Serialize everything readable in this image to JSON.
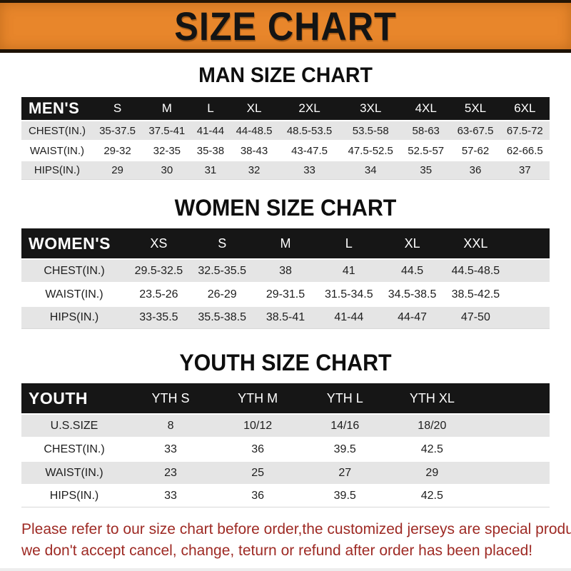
{
  "banner": {
    "title": "SIZE CHART",
    "background": "#E8862B",
    "text_color": "#141414"
  },
  "sections": [
    {
      "title": "MAN SIZE CHART",
      "header_label": "MEN'S",
      "columns": [
        "S",
        "M",
        "L",
        "XL",
        "2XL",
        "3XL",
        "4XL",
        "5XL",
        "6XL"
      ],
      "rows": [
        {
          "label": "CHEST(IN.)",
          "values": [
            "35-37.5",
            "37.5-41",
            "41-44",
            "44-48.5",
            "48.5-53.5",
            "53.5-58",
            "58-63",
            "63-67.5",
            "67.5-72"
          ]
        },
        {
          "label": "WAIST(IN.)",
          "values": [
            "29-32",
            "32-35",
            "35-38",
            "38-43",
            "43-47.5",
            "47.5-52.5",
            "52.5-57",
            "57-62",
            "62-66.5"
          ]
        },
        {
          "label": "HIPS(IN.)",
          "values": [
            "29",
            "30",
            "31",
            "32",
            "33",
            "34",
            "35",
            "36",
            "37"
          ]
        }
      ]
    },
    {
      "title": "WOMEN SIZE CHART",
      "header_label": "WOMEN'S",
      "columns": [
        "XS",
        "S",
        "M",
        "L",
        "XL",
        "XXL"
      ],
      "rows": [
        {
          "label": "CHEST(IN.)",
          "values": [
            "29.5-32.5",
            "32.5-35.5",
            "38",
            "41",
            "44.5",
            "44.5-48.5"
          ]
        },
        {
          "label": "WAIST(IN.)",
          "values": [
            "23.5-26",
            "26-29",
            "29-31.5",
            "31.5-34.5",
            "34.5-38.5",
            "38.5-42.5"
          ]
        },
        {
          "label": "HIPS(IN.)",
          "values": [
            "33-35.5",
            "35.5-38.5",
            "38.5-41",
            "41-44",
            "44-47",
            "47-50"
          ]
        }
      ]
    },
    {
      "title": "YOUTH SIZE CHART",
      "header_label": "YOUTH",
      "columns": [
        "YTH S",
        "YTH M",
        "YTH L",
        "YTH XL"
      ],
      "rows": [
        {
          "label": "U.S.SIZE",
          "values": [
            "8",
            "10/12",
            "14/16",
            "18/20"
          ]
        },
        {
          "label": "CHEST(IN.)",
          "values": [
            "33",
            "36",
            "39.5",
            "42.5"
          ]
        },
        {
          "label": "WAIST(IN.)",
          "values": [
            "23",
            "25",
            "27",
            "29"
          ]
        },
        {
          "label": "HIPS(IN.)",
          "values": [
            "33",
            "36",
            "39.5",
            "42.5"
          ]
        }
      ]
    }
  ],
  "footer": {
    "line1": "Please refer to our size chart before order,the customized jerseys are special products,",
    "line2": "we don't accept cancel, change, teturn or refund after order has been placed!",
    "text_color": "#9E2A24"
  },
  "table_colors": {
    "header_bar": "#161616",
    "row_alt": "#E5E5E5",
    "row": "#FFFFFF"
  },
  "chart_data": [
    {
      "type": "table",
      "title": "MAN SIZE CHART",
      "group": "MEN'S",
      "columns": [
        "S",
        "M",
        "L",
        "XL",
        "2XL",
        "3XL",
        "4XL",
        "5XL",
        "6XL"
      ],
      "row_labels": [
        "CHEST(IN.)",
        "WAIST(IN.)",
        "HIPS(IN.)"
      ],
      "values": [
        [
          "35-37.5",
          "37.5-41",
          "41-44",
          "44-48.5",
          "48.5-53.5",
          "53.5-58",
          "58-63",
          "63-67.5",
          "67.5-72"
        ],
        [
          "29-32",
          "32-35",
          "35-38",
          "38-43",
          "43-47.5",
          "47.5-52.5",
          "52.5-57",
          "57-62",
          "62-66.5"
        ],
        [
          "29",
          "30",
          "31",
          "32",
          "33",
          "34",
          "35",
          "36",
          "37"
        ]
      ]
    },
    {
      "type": "table",
      "title": "WOMEN SIZE CHART",
      "group": "WOMEN'S",
      "columns": [
        "XS",
        "S",
        "M",
        "L",
        "XL",
        "XXL"
      ],
      "row_labels": [
        "CHEST(IN.)",
        "WAIST(IN.)",
        "HIPS(IN.)"
      ],
      "values": [
        [
          "29.5-32.5",
          "32.5-35.5",
          "38",
          "41",
          "44.5",
          "44.5-48.5"
        ],
        [
          "23.5-26",
          "26-29",
          "29-31.5",
          "31.5-34.5",
          "34.5-38.5",
          "38.5-42.5"
        ],
        [
          "33-35.5",
          "35.5-38.5",
          "38.5-41",
          "41-44",
          "44-47",
          "47-50"
        ]
      ]
    },
    {
      "type": "table",
      "title": "YOUTH SIZE CHART",
      "group": "YOUTH",
      "columns": [
        "YTH S",
        "YTH M",
        "YTH L",
        "YTH XL"
      ],
      "row_labels": [
        "U.S.SIZE",
        "CHEST(IN.)",
        "WAIST(IN.)",
        "HIPS(IN.)"
      ],
      "values": [
        [
          "8",
          "10/12",
          "14/16",
          "18/20"
        ],
        [
          "33",
          "36",
          "39.5",
          "42.5"
        ],
        [
          "23",
          "25",
          "27",
          "29"
        ],
        [
          "33",
          "36",
          "39.5",
          "42.5"
        ]
      ]
    }
  ]
}
